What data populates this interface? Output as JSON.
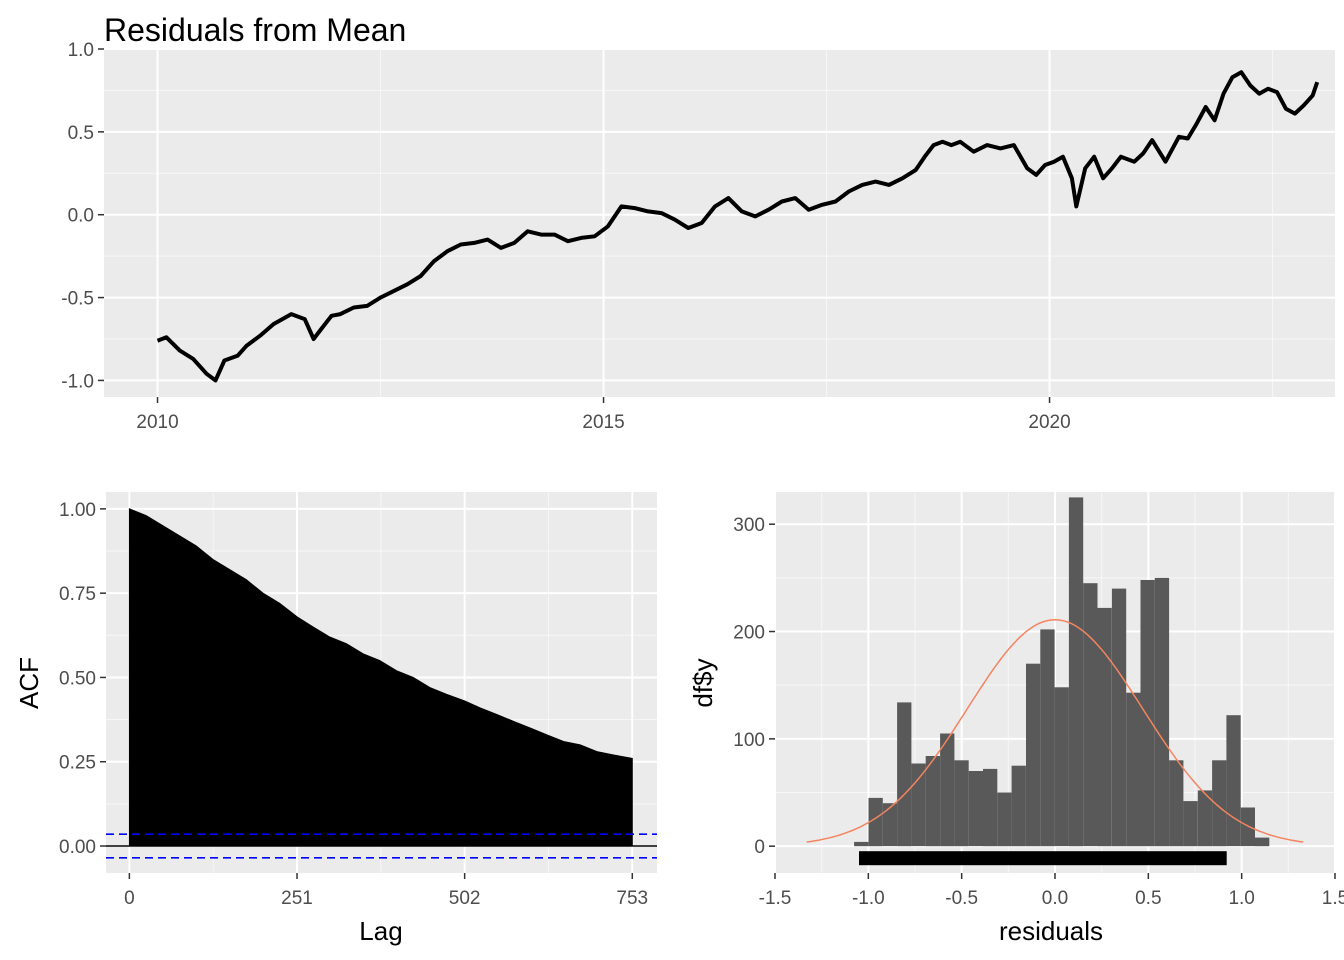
{
  "chart_data": [
    {
      "type": "line",
      "title": "Residuals from Mean",
      "xlabel": "",
      "ylabel": "",
      "x_ticks": [
        "2010",
        "2015",
        "2020"
      ],
      "y_ticks": [
        "-1.0",
        "-0.5",
        "0.0",
        "0.5",
        "1.0"
      ],
      "xlim": [
        2009.4,
        2023.2
      ],
      "ylim": [
        -1.1,
        1.0
      ],
      "grid": true,
      "series": [
        {
          "x": [
            2010.0,
            2010.1,
            2010.25,
            2010.4,
            2010.55,
            2010.65,
            2010.75,
            2010.9,
            2011.0,
            2011.15,
            2011.3,
            2011.5,
            2011.65,
            2011.75,
            2011.85,
            2011.95,
            2012.05,
            2012.2,
            2012.35,
            2012.5,
            2012.65,
            2012.8,
            2012.95,
            2013.1,
            2013.25,
            2013.4,
            2013.55,
            2013.7,
            2013.85,
            2014.0,
            2014.15,
            2014.3,
            2014.45,
            2014.6,
            2014.75,
            2014.9,
            2015.05,
            2015.2,
            2015.35,
            2015.5,
            2015.65,
            2015.8,
            2015.95,
            2016.1,
            2016.25,
            2016.4,
            2016.55,
            2016.7,
            2016.85,
            2017.0,
            2017.15,
            2017.3,
            2017.45,
            2017.6,
            2017.75,
            2017.9,
            2018.05,
            2018.2,
            2018.35,
            2018.5,
            2018.6,
            2018.7,
            2018.8,
            2018.9,
            2019.0,
            2019.15,
            2019.3,
            2019.45,
            2019.6,
            2019.75,
            2019.85,
            2019.95,
            2020.05,
            2020.15,
            2020.25,
            2020.3,
            2020.4,
            2020.5,
            2020.6,
            2020.7,
            2020.8,
            2020.95,
            2021.05,
            2021.15,
            2021.3,
            2021.45,
            2021.55,
            2021.65,
            2021.75,
            2021.85,
            2021.95,
            2022.05,
            2022.15,
            2022.25,
            2022.35,
            2022.45,
            2022.55,
            2022.65,
            2022.75,
            2022.85,
            2022.95,
            2023.0
          ],
          "values": [
            -0.76,
            -0.74,
            -0.82,
            -0.87,
            -0.96,
            -1.0,
            -0.88,
            -0.85,
            -0.79,
            -0.73,
            -0.66,
            -0.6,
            -0.63,
            -0.75,
            -0.68,
            -0.61,
            -0.6,
            -0.56,
            -0.55,
            -0.5,
            -0.46,
            -0.42,
            -0.37,
            -0.28,
            -0.22,
            -0.18,
            -0.17,
            -0.15,
            -0.2,
            -0.17,
            -0.1,
            -0.12,
            -0.12,
            -0.16,
            -0.14,
            -0.13,
            -0.07,
            0.05,
            0.04,
            0.02,
            0.01,
            -0.03,
            -0.08,
            -0.05,
            0.05,
            0.1,
            0.02,
            -0.01,
            0.03,
            0.08,
            0.1,
            0.03,
            0.06,
            0.08,
            0.14,
            0.18,
            0.2,
            0.18,
            0.22,
            0.27,
            0.35,
            0.42,
            0.44,
            0.42,
            0.44,
            0.38,
            0.42,
            0.4,
            0.42,
            0.28,
            0.24,
            0.3,
            0.32,
            0.35,
            0.22,
            0.05,
            0.28,
            0.35,
            0.22,
            0.28,
            0.35,
            0.32,
            0.37,
            0.45,
            0.32,
            0.47,
            0.46,
            0.55,
            0.65,
            0.57,
            0.73,
            0.83,
            0.86,
            0.78,
            0.73,
            0.76,
            0.74,
            0.64,
            0.61,
            0.66,
            0.72,
            0.8
          ]
        }
      ]
    },
    {
      "type": "bar",
      "title": "",
      "xlabel": "Lag",
      "ylabel": "ACF",
      "x_ticks": [
        "0",
        "251",
        "502",
        "753"
      ],
      "y_ticks": [
        "0.00",
        "0.25",
        "0.50",
        "0.75",
        "1.00"
      ],
      "xlim": [
        -35,
        790
      ],
      "ylim": [
        -0.08,
        1.05
      ],
      "ci": 0.035,
      "grid": true,
      "series": [
        {
          "x": [
            0,
            25,
            50,
            75,
            100,
            125,
            150,
            175,
            200,
            225,
            251,
            275,
            300,
            325,
            350,
            375,
            400,
            425,
            450,
            475,
            502,
            525,
            550,
            575,
            600,
            625,
            650,
            675,
            700,
            725,
            753
          ],
          "values": [
            1.0,
            0.98,
            0.95,
            0.92,
            0.89,
            0.85,
            0.82,
            0.79,
            0.75,
            0.72,
            0.68,
            0.65,
            0.62,
            0.6,
            0.57,
            0.55,
            0.52,
            0.5,
            0.47,
            0.45,
            0.43,
            0.41,
            0.39,
            0.37,
            0.35,
            0.33,
            0.31,
            0.3,
            0.28,
            0.27,
            0.26
          ]
        }
      ]
    },
    {
      "type": "bar",
      "title": "",
      "xlabel": "residuals",
      "ylabel": "df$y",
      "x_ticks": [
        "-1.5",
        "-1.0",
        "-0.5",
        "0.0",
        "0.5",
        "1.0",
        "1.5"
      ],
      "y_ticks": [
        "0",
        "100",
        "200",
        "300"
      ],
      "xlim": [
        -1.5,
        1.5
      ],
      "ylim": [
        -25,
        330
      ],
      "bin_width": 0.0767,
      "bin_start": -1.076,
      "grid": true,
      "values": [
        4,
        45,
        40,
        134,
        77,
        84,
        105,
        80,
        70,
        72,
        50,
        75,
        170,
        202,
        148,
        325,
        245,
        222,
        240,
        143,
        248,
        250,
        80,
        42,
        52,
        80,
        122,
        36,
        8
      ],
      "normal_curve": {
        "mean": 0.0,
        "sd": 0.47,
        "peak": 211,
        "range": [
          -1.33,
          1.33
        ]
      },
      "rug_range": [
        -1.05,
        0.92
      ]
    }
  ],
  "colors": {
    "panel": "#ebebeb",
    "grid": "#ffffff",
    "line": "#000000",
    "acf_fill": "#000000",
    "ci_line": "#0000ff",
    "hist_fill": "#595959",
    "curve": "#f4845f",
    "tick_text": "#4d4d4d"
  }
}
